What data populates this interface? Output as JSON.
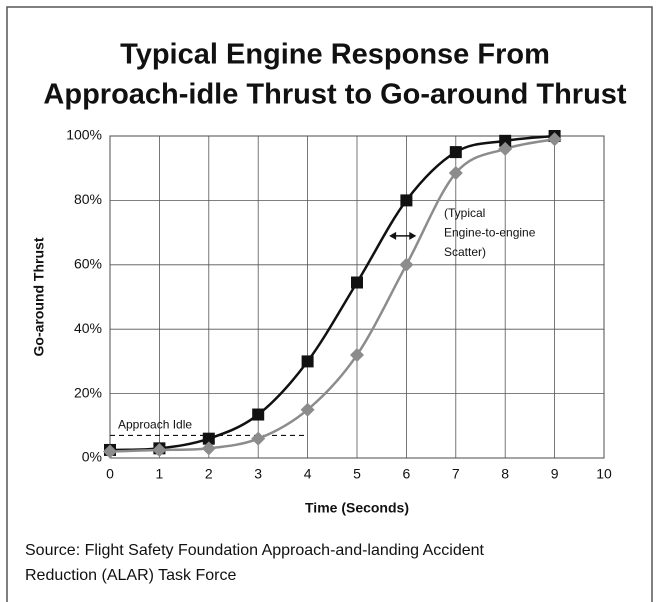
{
  "chart_data": {
    "type": "line",
    "title": [
      "Typical Engine Response From",
      "Approach-idle Thrust to Go-around Thrust"
    ],
    "x_label": "Time (Seconds)",
    "y_label": "Go-around Thrust",
    "x": [
      0,
      1,
      2,
      3,
      4,
      5,
      6,
      7,
      8,
      9
    ],
    "series": [
      {
        "color": "#111111",
        "marker": "square",
        "values": [
          2.5,
          3,
          6,
          13.5,
          30,
          54.5,
          80,
          95,
          98.5,
          100
        ]
      },
      {
        "color": "#8c8c8c",
        "marker": "diamond",
        "values": [
          2,
          2.5,
          3,
          6,
          15,
          32,
          60,
          88.5,
          96,
          99
        ]
      }
    ],
    "xlim": [
      0,
      10
    ],
    "xticks": [
      0,
      1,
      2,
      3,
      4,
      5,
      6,
      7,
      8,
      9,
      10
    ],
    "ylim": [
      0,
      100
    ],
    "yticks": [
      {
        "value": 0,
        "label": "0%"
      },
      {
        "value": 20,
        "label": "20%"
      },
      {
        "value": 40,
        "label": "40%"
      },
      {
        "value": 60,
        "label": "60%"
      },
      {
        "value": 80,
        "label": "80%"
      },
      {
        "value": 100,
        "label": "100%"
      }
    ],
    "grid": true,
    "idle": {
      "label": "Approach Idle",
      "level": 7,
      "x_end": 4
    },
    "scatter_note": {
      "lines": [
        "(Typical",
        "Engine-to-engine",
        "Scatter)"
      ],
      "y": 69,
      "x": [
        5.65,
        6.2
      ]
    },
    "source": [
      "Source: Flight Safety Foundation Approach-and-landing Accident",
      "Reduction (ALAR) Task Force"
    ]
  }
}
